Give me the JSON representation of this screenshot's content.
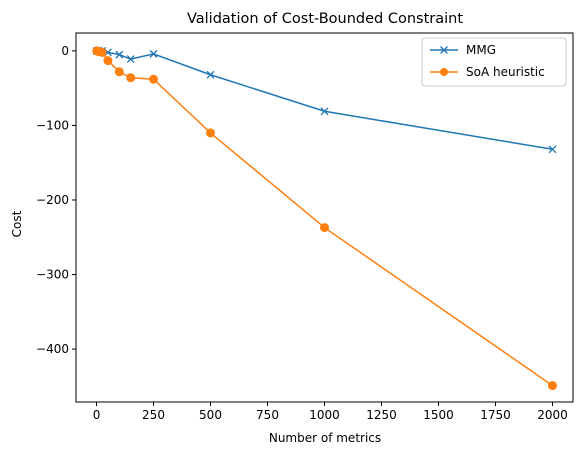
{
  "chart_data": {
    "type": "line",
    "title": "Validation of Cost-Bounded Constraint",
    "xlabel": "Number of metrics",
    "ylabel": "Cost",
    "xlim": [
      -90,
      2090
    ],
    "ylim": [
      -471,
      24
    ],
    "xticks": [
      0,
      250,
      500,
      750,
      1000,
      1250,
      1500,
      1750,
      2000
    ],
    "yticks": [
      0,
      -100,
      -200,
      -300,
      -400
    ],
    "ytick_labels": [
      "0",
      "−100",
      "−200",
      "−300",
      "−400"
    ],
    "grid": false,
    "legend_position": "top-right",
    "series": [
      {
        "name": "MMG",
        "color": "#1f77b4",
        "marker": "x",
        "x": [
          1,
          10,
          25,
          50,
          100,
          150,
          250,
          500,
          1000,
          2000
        ],
        "y": [
          0,
          0,
          0,
          -2,
          -5,
          -11,
          -4,
          -32,
          -81,
          -132
        ]
      },
      {
        "name": "SoA heuristic",
        "color": "#ff7f0e",
        "marker": "o",
        "x": [
          1,
          10,
          25,
          50,
          100,
          150,
          250,
          500,
          1000,
          2000
        ],
        "y": [
          0,
          -1,
          -2,
          -13,
          -28,
          -36,
          -38,
          -110,
          -237,
          -449
        ]
      }
    ]
  }
}
